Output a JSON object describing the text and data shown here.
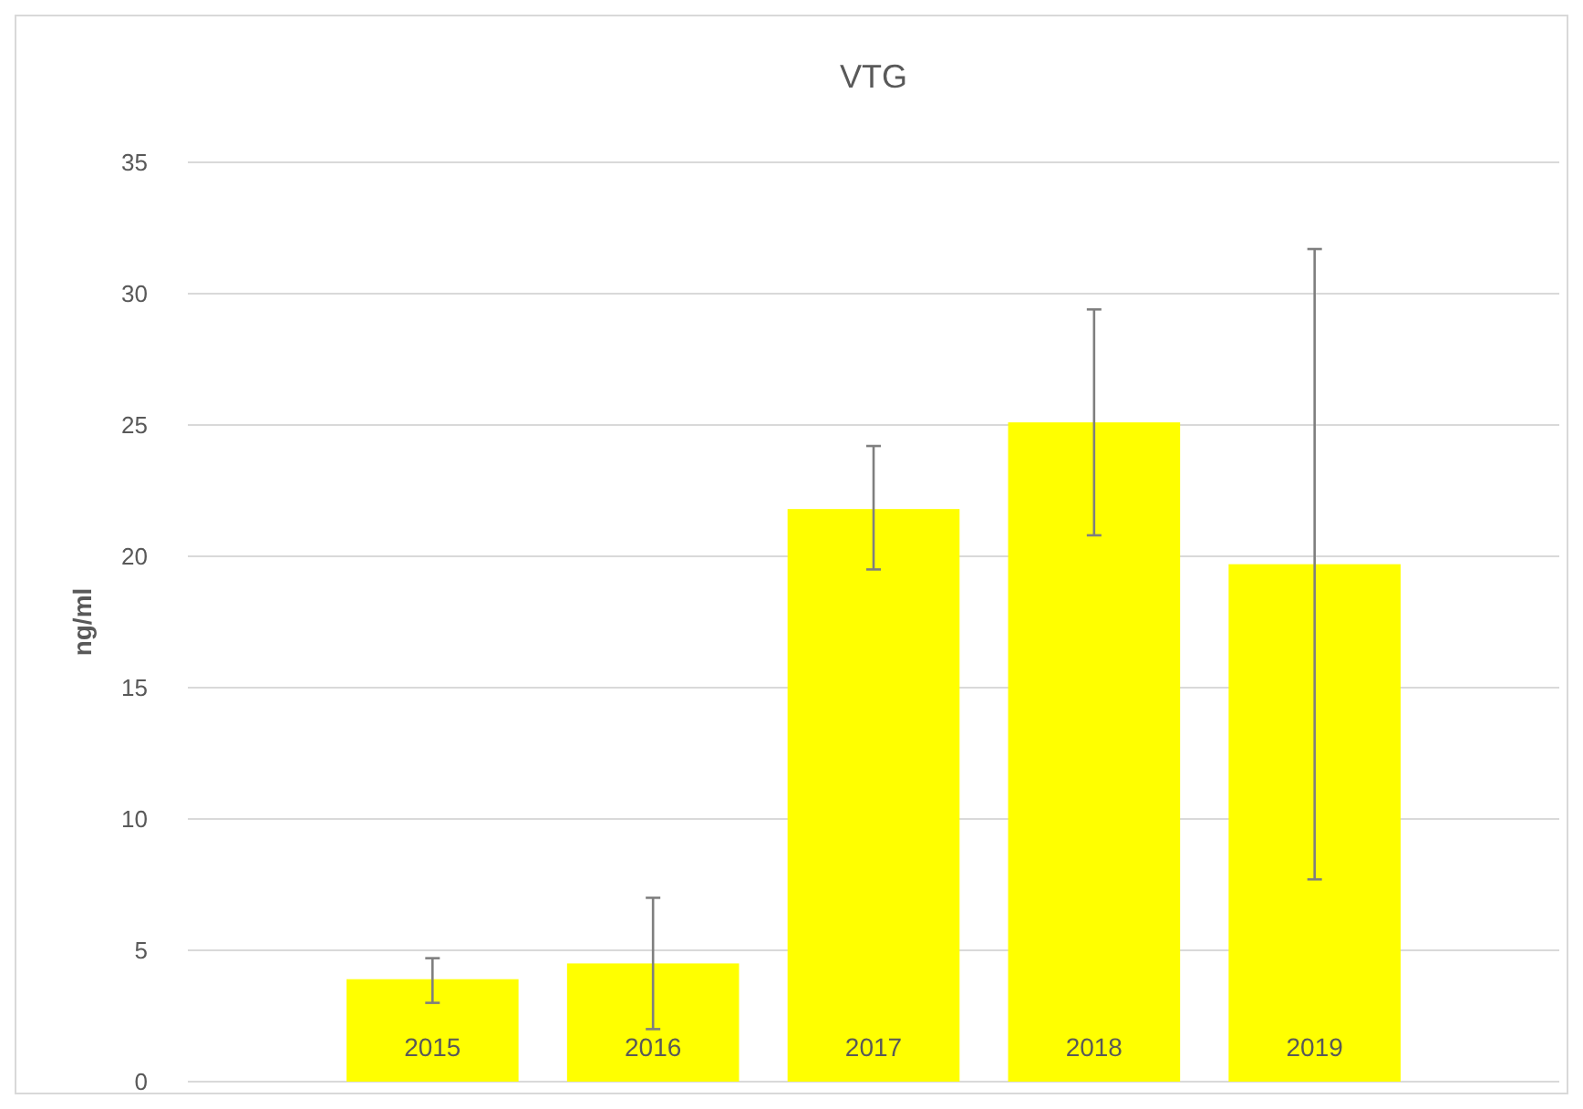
{
  "chart_data": {
    "type": "bar",
    "title": "VTG",
    "ylabel": "ng/ml",
    "categories": [
      "2015",
      "2016",
      "2017",
      "2018",
      "2019"
    ],
    "values": [
      3.9,
      4.5,
      21.8,
      25.1,
      19.7
    ],
    "errors": [
      [
        3.0,
        4.7
      ],
      [
        2.0,
        7.0
      ],
      [
        19.5,
        24.2
      ],
      [
        20.8,
        29.4
      ],
      [
        7.7,
        31.7
      ]
    ],
    "color": "#ffff00",
    "ylim": [
      0,
      35
    ],
    "yticks": [
      0,
      5,
      10,
      15,
      20,
      25,
      30,
      35
    ],
    "grid": "y"
  }
}
